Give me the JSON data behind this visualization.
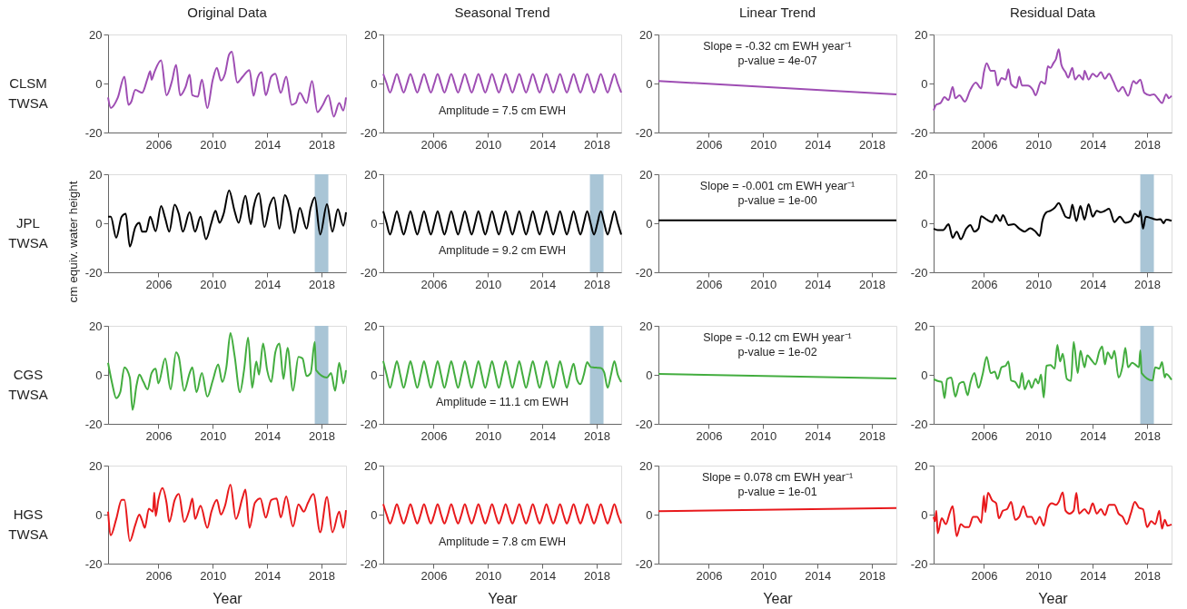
{
  "chart_data": [
    {
      "type": "line",
      "title": "Original Data",
      "annotations": [
        "CLSM TWSA"
      ],
      "xlim": [
        2002.3,
        2019.8
      ],
      "ylim": [
        -20,
        20
      ],
      "xticks": [
        2006,
        2010,
        2014,
        2018
      ],
      "yticks": [
        -20,
        0,
        20
      ],
      "x": [
        2002.3,
        2002.5,
        2003.0,
        2003.5,
        2003.8,
        2004.0,
        2004.3,
        2004.8,
        2005.2,
        2005.4,
        2005.5,
        2005.7,
        2006.2,
        2006.6,
        2007.0,
        2007.3,
        2007.6,
        2008.0,
        2008.3,
        2008.5,
        2008.9,
        2009.2,
        2009.6,
        2010.0,
        2010.3,
        2010.6,
        2010.9,
        2011.2,
        2011.4,
        2011.8,
        2012.2,
        2012.7,
        2013.0,
        2013.3,
        2013.6,
        2013.9,
        2014.3,
        2014.6,
        2015.0,
        2015.4,
        2015.8,
        2016.1,
        2016.4,
        2016.9,
        2017.3,
        2017.7,
        2018.1,
        2018.5,
        2018.9,
        2019.3,
        2019.6,
        2019.8
      ],
      "series": [
        {
          "color": "#9e4db3",
          "values": [
            -5.7,
            -10,
            -6,
            2.8,
            -8.7,
            -7.5,
            -2.6,
            -3.8,
            2,
            5,
            1.5,
            4.5,
            9.4,
            -4.8,
            1,
            7.6,
            -4.8,
            -1.4,
            3.6,
            -4.8,
            -5.4,
            1.6,
            -10,
            1.6,
            6.4,
            1.2,
            4,
            11.8,
            13,
            0.4,
            2.8,
            5.5,
            -5,
            2.4,
            4.6,
            -4.8,
            2.8,
            4,
            -3.8,
            2.8,
            -8.7,
            -8,
            -3.8,
            -8,
            1,
            -11.7,
            -8.7,
            -4.8,
            -13.5,
            -8,
            -11,
            -5.7
          ]
        }
      ]
    },
    {
      "type": "line",
      "title": "Seasonal Trend",
      "annotations": [
        "Amplitude = 7.5 cm EWH"
      ],
      "xlim": [
        2002.3,
        2019.8
      ],
      "ylim": [
        -20,
        20
      ],
      "xticks": [
        2006,
        2010,
        2014,
        2018
      ],
      "yticks": [
        -20,
        0,
        20
      ],
      "x": [
        2002.3,
        2002.55,
        2002.8,
        2003.05,
        2003.3,
        2003.55,
        2003.8,
        2004.05,
        2004.3,
        2004.55,
        2004.8,
        2005.05,
        2005.3,
        2005.55,
        2005.8,
        2006.05,
        2006.3,
        2006.55,
        2006.8,
        2007.05,
        2007.3,
        2007.55,
        2007.8,
        2008.05,
        2008.3,
        2008.55,
        2008.8,
        2009.05,
        2009.3,
        2009.55,
        2009.8,
        2010.05,
        2010.3,
        2010.55,
        2010.8,
        2011.05,
        2011.3,
        2011.55,
        2011.8,
        2012.05,
        2012.3,
        2012.55,
        2012.8,
        2013.05,
        2013.3,
        2013.55,
        2013.8,
        2014.05,
        2014.3,
        2014.55,
        2014.8,
        2015.05,
        2015.3,
        2015.55,
        2015.8,
        2016.05,
        2016.3,
        2016.55,
        2016.8,
        2017.05,
        2017.3,
        2017.55,
        2017.8,
        2018.05,
        2018.3,
        2018.55,
        2018.8,
        2019.05,
        2019.3,
        2019.55,
        2019.8
      ],
      "series": [
        {
          "color": "#9e4db3",
          "values": [
            3.9,
            0,
            -3.7,
            0,
            3.9,
            0,
            -3.7,
            0,
            3.9,
            0,
            -3.7,
            0,
            3.9,
            0,
            -3.7,
            0,
            3.9,
            0,
            -3.7,
            0,
            3.9,
            0,
            -3.7,
            0,
            3.9,
            0,
            -3.7,
            0,
            3.9,
            0,
            -3.7,
            0,
            3.9,
            0,
            -3.7,
            0,
            3.9,
            0,
            -3.7,
            0,
            3.9,
            0,
            -3.7,
            0,
            3.9,
            0,
            -3.7,
            0,
            3.9,
            0,
            -3.7,
            0,
            3.9,
            0,
            -3.7,
            0,
            3.9,
            0,
            -3.7,
            0,
            3.9,
            0,
            -3.7,
            0,
            3.9,
            0,
            -3.7,
            0,
            3.9,
            0,
            -3.7
          ]
        }
      ]
    },
    {
      "type": "line",
      "title": "Linear Trend",
      "annotations": [
        "Slope = -0.32 cm EWH year⁻¹",
        "p-value = 4e-07"
      ],
      "xlim": [
        2002.3,
        2019.8
      ],
      "ylim": [
        -20,
        20
      ],
      "xticks": [
        2006,
        2010,
        2014,
        2018
      ],
      "yticks": [
        -20,
        0,
        20
      ],
      "x": [
        2002.3,
        2019.8
      ],
      "series": [
        {
          "color": "#9e4db3",
          "values": [
            1.0,
            -4.4
          ]
        }
      ]
    },
    {
      "type": "line",
      "title": "Residual Data",
      "xlim": [
        2002.3,
        2019.8
      ],
      "ylim": [
        -20,
        20
      ],
      "xticks": [
        2006,
        2010,
        2014,
        2018
      ],
      "yticks": [
        -20,
        0,
        20
      ],
      "x": [
        2002.3,
        2002.5,
        2002.8,
        2003.1,
        2003.4,
        2003.7,
        2003.9,
        2004.2,
        2004.6,
        2005.0,
        2005.4,
        2005.8,
        2006.0,
        2006.2,
        2006.5,
        2006.8,
        2007.0,
        2007.3,
        2007.6,
        2007.8,
        2008.0,
        2008.4,
        2008.6,
        2008.8,
        2009.2,
        2009.6,
        2009.8,
        2010.2,
        2010.5,
        2010.7,
        2010.9,
        2011.1,
        2011.3,
        2011.5,
        2011.7,
        2012.0,
        2012.2,
        2012.5,
        2012.7,
        2013.0,
        2013.3,
        2013.4,
        2013.7,
        2014.0,
        2014.3,
        2014.6,
        2014.9,
        2015.2,
        2015.5,
        2015.9,
        2016.2,
        2016.6,
        2017.0,
        2017.2,
        2017.5,
        2017.8,
        2018.2,
        2018.5,
        2018.8,
        2019.1,
        2019.4,
        2019.6,
        2019.8
      ],
      "series": [
        {
          "color": "#9e4db3",
          "values": [
            -11,
            -8.6,
            -8,
            -5.6,
            -6.8,
            -1.4,
            -6,
            -4.8,
            -7.4,
            -2.6,
            0.4,
            -2,
            4.6,
            8.2,
            5.2,
            5.2,
            -0.8,
            2.2,
            1.6,
            5.8,
            -0.2,
            -1.7,
            2.8,
            -0.8,
            -0.8,
            -2.6,
            -4.8,
            0.7,
            -0.2,
            7,
            6.4,
            8.2,
            10,
            14,
            7.6,
            4.6,
            2.4,
            6.4,
            1.6,
            3.4,
            1.6,
            5.2,
            1.6,
            4,
            2.8,
            4.6,
            1.9,
            4,
            1,
            -3.2,
            -1.4,
            -5,
            1,
            0,
            1.6,
            -3.8,
            -4.8,
            -4.4,
            -6.2,
            -8,
            -4.4,
            -6,
            -5
          ]
        }
      ]
    },
    {
      "type": "line",
      "ylabel": "cm equiv. water height",
      "annotations": [
        "JPL TWSA"
      ],
      "xlim": [
        2002.3,
        2019.8
      ],
      "ylim": [
        -20,
        20
      ],
      "xticks": [
        2006,
        2010,
        2014,
        2018
      ],
      "yticks": [
        -20,
        0,
        20
      ],
      "bands": [
        {
          "axis": "x",
          "from": 2017.5,
          "to": 2018.5,
          "color": "#a9c5d6"
        }
      ],
      "x": [
        2002.3,
        2002.5,
        2002.9,
        2003.3,
        2003.6,
        2003.9,
        2004.3,
        2004.6,
        2004.8,
        2005.1,
        2005.4,
        2005.8,
        2006.2,
        2006.5,
        2006.8,
        2007.2,
        2007.5,
        2007.8,
        2008.3,
        2008.7,
        2009.1,
        2009.5,
        2009.9,
        2010.2,
        2010.5,
        2010.8,
        2011.2,
        2011.6,
        2011.9,
        2012.4,
        2012.8,
        2013.0,
        2013.4,
        2013.8,
        2014.2,
        2014.5,
        2014.9,
        2015.3,
        2015.7,
        2016.0,
        2016.4,
        2016.9,
        2017.2,
        2017.5,
        2017.9,
        2018.4,
        2018.8,
        2019.2,
        2019.6,
        2019.8
      ],
      "series": [
        {
          "color": "#000000",
          "values": [
            2.7,
            2.7,
            -5.9,
            2.7,
            3.9,
            -9.5,
            -1.6,
            0.2,
            -3.4,
            -3.4,
            2.7,
            -3.2,
            7,
            2.1,
            -3.4,
            7.6,
            3.9,
            -3.4,
            4.5,
            -3.4,
            2.7,
            -6.5,
            0.2,
            5.1,
            0.2,
            3.9,
            13.4,
            5.1,
            0.2,
            11.2,
            -0.4,
            6.3,
            12.2,
            -1.6,
            7.6,
            10.6,
            -2.2,
            11.5,
            5.1,
            -4,
            6.3,
            -2.2,
            6.3,
            10.6,
            -4.6,
            7.8,
            -3.4,
            5.7,
            -1,
            4.5
          ]
        }
      ]
    },
    {
      "type": "line",
      "annotations": [
        "Amplitude = 9.2 cm EWH"
      ],
      "xlim": [
        2002.3,
        2019.8
      ],
      "ylim": [
        -20,
        20
      ],
      "xticks": [
        2006,
        2010,
        2014,
        2018
      ],
      "yticks": [
        -20,
        0,
        20
      ],
      "bands": [
        {
          "axis": "x",
          "from": 2017.5,
          "to": 2018.5,
          "color": "#a9c5d6"
        }
      ],
      "x": [
        2002.3,
        2002.55,
        2002.8,
        2003.05,
        2003.3,
        2003.55,
        2003.8,
        2004.05,
        2004.3,
        2004.55,
        2004.8,
        2005.05,
        2005.3,
        2005.55,
        2005.8,
        2006.05,
        2006.3,
        2006.55,
        2006.8,
        2007.05,
        2007.3,
        2007.55,
        2007.8,
        2008.05,
        2008.3,
        2008.55,
        2008.8,
        2009.05,
        2009.3,
        2009.55,
        2009.8,
        2010.05,
        2010.3,
        2010.55,
        2010.8,
        2011.05,
        2011.3,
        2011.55,
        2011.8,
        2012.05,
        2012.3,
        2012.55,
        2012.8,
        2013.05,
        2013.3,
        2013.55,
        2013.8,
        2014.05,
        2014.3,
        2014.55,
        2014.8,
        2015.05,
        2015.3,
        2015.55,
        2015.8,
        2016.05,
        2016.3,
        2016.55,
        2016.8,
        2017.05,
        2017.3,
        2017.55,
        2017.8,
        2018.05,
        2018.3,
        2018.55,
        2018.8,
        2019.05,
        2019.3,
        2019.55,
        2019.8
      ],
      "series": [
        {
          "color": "#000000",
          "values": [
            4.9,
            0,
            -4.6,
            0,
            4.9,
            0,
            -4.6,
            0,
            4.9,
            0,
            -4.6,
            0,
            4.9,
            0,
            -4.6,
            0,
            4.9,
            0,
            -4.6,
            0,
            4.9,
            0,
            -4.6,
            0,
            4.9,
            0,
            -4.6,
            0,
            4.9,
            0,
            -4.6,
            0,
            4.9,
            0,
            -4.6,
            0,
            4.9,
            0,
            -4.6,
            0,
            4.9,
            0,
            -4.6,
            0,
            4.9,
            0,
            -4.6,
            0,
            4.9,
            0,
            -4.6,
            0,
            4.9,
            0,
            -4.6,
            0,
            4.9,
            0,
            -4.6,
            0,
            4.9,
            0,
            -4.6,
            0,
            4.9,
            0,
            -4.6,
            0,
            4.9,
            0,
            -4.6
          ]
        }
      ]
    },
    {
      "type": "line",
      "annotations": [
        "Slope = -0.001 cm EWH year⁻¹",
        "p-value = 1e-00"
      ],
      "xlim": [
        2002.3,
        2019.8
      ],
      "ylim": [
        -20,
        20
      ],
      "xticks": [
        2006,
        2010,
        2014,
        2018
      ],
      "yticks": [
        -20,
        0,
        20
      ],
      "x": [
        2002.3,
        2019.8
      ],
      "series": [
        {
          "color": "#000000",
          "values": [
            1.2,
            1.2
          ]
        }
      ]
    },
    {
      "type": "line",
      "xlim": [
        2002.3,
        2019.8
      ],
      "ylim": [
        -20,
        20
      ],
      "xticks": [
        2006,
        2010,
        2014,
        2018
      ],
      "yticks": [
        -20,
        0,
        20
      ],
      "bands": [
        {
          "axis": "x",
          "from": 2017.5,
          "to": 2018.5,
          "color": "#a9c5d6"
        }
      ],
      "x": [
        2002.3,
        2002.6,
        2003.0,
        2003.4,
        2003.7,
        2004.0,
        2004.3,
        2004.7,
        2005.0,
        2005.3,
        2005.6,
        2005.8,
        2006.2,
        2006.6,
        2006.9,
        2007.2,
        2007.4,
        2007.8,
        2008.2,
        2008.6,
        2009.0,
        2009.4,
        2009.8,
        2010.1,
        2010.3,
        2010.6,
        2010.9,
        2011.2,
        2011.5,
        2011.8,
        2012.0,
        2012.3,
        2012.5,
        2012.8,
        2013.1,
        2013.4,
        2013.7,
        2014.0,
        2014.3,
        2014.6,
        2014.9,
        2015.2,
        2015.6,
        2016.0,
        2016.4,
        2016.8,
        2017.1,
        2017.4,
        2017.5,
        2017.7,
        2017.9,
        2018.3,
        2018.7,
        2019.0,
        2019.2,
        2019.4,
        2019.8
      ],
      "series": [
        {
          "color": "#000000",
          "values": [
            -2.2,
            -2.8,
            -2.8,
            -0.4,
            -5.9,
            -3.4,
            -6.5,
            -2.2,
            -0.7,
            -3.4,
            -2.2,
            2.9,
            1.5,
            0.5,
            3.3,
            0.9,
            3.3,
            -0.7,
            -0.4,
            -2.2,
            -3.4,
            -2,
            -3.4,
            -5.2,
            0.9,
            4.5,
            5.1,
            6.3,
            8.2,
            5.1,
            2.7,
            2.1,
            7.6,
            0.9,
            7,
            1.5,
            7.8,
            2.7,
            5.1,
            4.5,
            5.1,
            5.9,
            0.5,
            2.7,
            0.2,
            0.9,
            3.9,
            2.7,
            5.1,
            -2.2,
            2.7,
            2.1,
            1.5,
            1.7,
            0,
            1.5,
            1
          ]
        }
      ]
    },
    {
      "type": "line",
      "annotations": [
        "CGS TWSA"
      ],
      "xlim": [
        2002.3,
        2019.8
      ],
      "ylim": [
        -20,
        20
      ],
      "xticks": [
        2006,
        2010,
        2014,
        2018
      ],
      "yticks": [
        -20,
        0,
        20
      ],
      "bands": [
        {
          "axis": "x",
          "from": 2017.5,
          "to": 2018.5,
          "color": "#a9c5d6"
        }
      ],
      "x": [
        2002.3,
        2002.6,
        2002.9,
        2003.2,
        2003.5,
        2003.9,
        2004.1,
        2004.4,
        2004.6,
        2004.9,
        2005.2,
        2005.5,
        2005.8,
        2006.0,
        2006.5,
        2006.9,
        2007.3,
        2007.5,
        2007.9,
        2008.3,
        2008.5,
        2008.8,
        2009.2,
        2009.6,
        2010.0,
        2010.4,
        2010.7,
        2011.0,
        2011.3,
        2011.6,
        2012.0,
        2012.3,
        2012.6,
        2012.9,
        2013.2,
        2013.4,
        2013.7,
        2014.0,
        2014.3,
        2014.6,
        2014.9,
        2015.2,
        2015.5,
        2015.9,
        2016.3,
        2016.6,
        2016.9,
        2017.2,
        2017.5,
        2017.6,
        2018.4,
        2018.7,
        2019.0,
        2019.3,
        2019.6,
        2019.8
      ],
      "series": [
        {
          "color": "#43ad3f",
          "values": [
            4.9,
            -3.5,
            -9.5,
            -7,
            3.1,
            -1.1,
            -14.3,
            -4.1,
            0.1,
            -2.9,
            -5.9,
            0.7,
            2.5,
            -3.5,
            6.7,
            -5.9,
            9.2,
            7.3,
            -6.5,
            0.7,
            3.1,
            -7.1,
            0.7,
            -8.9,
            -2.3,
            4.3,
            -2.9,
            3.1,
            17,
            8,
            -7.1,
            1.9,
            15.2,
            -5.3,
            5.5,
            0.1,
            12.8,
            1.9,
            -2.9,
            9.2,
            12.8,
            -1.7,
            11,
            -6.5,
            7.3,
            6.7,
            -0.5,
            0.7,
            13.4,
            1.9,
            -1.1,
            0.7,
            -6.5,
            4.9,
            -3.5,
            1.9
          ]
        }
      ]
    },
    {
      "type": "line",
      "annotations": [
        "Amplitude = 11.1 cm EWH"
      ],
      "xlim": [
        2002.3,
        2019.8
      ],
      "ylim": [
        -20,
        20
      ],
      "xticks": [
        2006,
        2010,
        2014,
        2018
      ],
      "yticks": [
        -20,
        0,
        20
      ],
      "bands": [
        {
          "axis": "x",
          "from": 2017.5,
          "to": 2018.5,
          "color": "#a9c5d6"
        }
      ],
      "x": [
        2002.3,
        2002.55,
        2002.8,
        2003.05,
        2003.3,
        2003.55,
        2003.8,
        2004.05,
        2004.3,
        2004.55,
        2004.8,
        2005.05,
        2005.3,
        2005.55,
        2005.8,
        2006.05,
        2006.3,
        2006.55,
        2006.8,
        2007.05,
        2007.3,
        2007.55,
        2007.8,
        2008.05,
        2008.3,
        2008.55,
        2008.8,
        2009.05,
        2009.3,
        2009.55,
        2009.8,
        2010.05,
        2010.3,
        2010.55,
        2010.8,
        2011.05,
        2011.3,
        2011.55,
        2011.8,
        2012.05,
        2012.3,
        2012.55,
        2012.8,
        2013.05,
        2013.3,
        2013.55,
        2013.8,
        2014.05,
        2014.3,
        2014.55,
        2014.8,
        2015.05,
        2015.3,
        2015.55,
        2015.8,
        2016.05,
        2016.3,
        2016.55,
        2016.8,
        2017.05,
        2017.3,
        2017.55,
        2017.8,
        2018.05,
        2018.3,
        2018.55,
        2018.8,
        2019.05,
        2019.3,
        2019.55,
        2019.8
      ],
      "series": [
        {
          "color": "#43ad3f",
          "values": [
            5.6,
            0,
            -5.3,
            0,
            5.6,
            0,
            -5.3,
            0,
            5.6,
            0,
            -5.3,
            0,
            5.6,
            0,
            -5.3,
            0,
            5.6,
            0,
            -5.3,
            0,
            5.6,
            0,
            -5.3,
            0,
            5.6,
            0,
            -5.3,
            0,
            5.6,
            0,
            -5.3,
            0,
            5.6,
            0,
            -5.3,
            0,
            5.6,
            0,
            -5.3,
            0,
            5.6,
            0,
            -5.3,
            0,
            5.6,
            0,
            -5.3,
            0,
            5.6,
            0,
            -5.3,
            0,
            5.6,
            0,
            -5.3,
            0,
            4.5,
            -2,
            -3.8,
            0,
            5.2,
            3.2,
            3.0,
            2.9,
            2.8,
            1,
            -5.3,
            0,
            5.6,
            0,
            -3
          ]
        }
      ]
    },
    {
      "type": "line",
      "annotations": [
        "Slope = -0.12 cm EWH year⁻¹",
        "p-value = 1e-02"
      ],
      "xlim": [
        2002.3,
        2019.8
      ],
      "ylim": [
        -20,
        20
      ],
      "xticks": [
        2006,
        2010,
        2014,
        2018
      ],
      "yticks": [
        -20,
        0,
        20
      ],
      "x": [
        2002.3,
        2019.8
      ],
      "series": [
        {
          "color": "#43ad3f",
          "values": [
            0.4,
            -1.5
          ]
        }
      ]
    },
    {
      "type": "line",
      "xlim": [
        2002.3,
        2019.8
      ],
      "ylim": [
        -20,
        20
      ],
      "xticks": [
        2006,
        2010,
        2014,
        2018
      ],
      "yticks": [
        -20,
        0,
        20
      ],
      "bands": [
        {
          "axis": "x",
          "from": 2017.5,
          "to": 2018.5,
          "color": "#a9c5d6"
        }
      ],
      "x": [
        2002.3,
        2002.6,
        2002.9,
        2003.1,
        2003.3,
        2003.6,
        2003.9,
        2004.2,
        2004.5,
        2004.8,
        2005.0,
        2005.3,
        2005.6,
        2005.9,
        2006.2,
        2006.5,
        2006.8,
        2007.0,
        2007.3,
        2007.6,
        2007.8,
        2008.0,
        2008.3,
        2008.6,
        2008.8,
        2009.0,
        2009.3,
        2009.5,
        2009.8,
        2010.0,
        2010.2,
        2010.4,
        2010.6,
        2010.9,
        2011.2,
        2011.4,
        2011.6,
        2011.8,
        2012.1,
        2012.4,
        2012.6,
        2012.9,
        2013.1,
        2013.4,
        2013.6,
        2013.9,
        2014.2,
        2014.5,
        2014.7,
        2014.9,
        2015.1,
        2015.4,
        2015.6,
        2015.9,
        2016.2,
        2016.4,
        2016.6,
        2016.9,
        2017.1,
        2017.4,
        2017.5,
        2017.6,
        2018.4,
        2018.6,
        2018.9,
        2019.1,
        2019.3,
        2019.4,
        2019.8
      ],
      "series": [
        {
          "color": "#43ad3f",
          "values": [
            -1.7,
            -2.5,
            -2.9,
            -9.5,
            -1.7,
            -1.1,
            -8.9,
            -3.5,
            -2.9,
            -8.3,
            -3.5,
            0.7,
            -5.3,
            0.1,
            7.3,
            0.7,
            1.3,
            -1.7,
            3.1,
            3.7,
            5.5,
            -2.3,
            -2.9,
            -5.3,
            0.7,
            -5.9,
            -2.3,
            -5.3,
            -1.7,
            -3.5,
            0.1,
            -9.3,
            3.7,
            4,
            2.5,
            12.2,
            5.5,
            8.6,
            -1.7,
            -2.5,
            13.4,
            0.7,
            9.8,
            3.1,
            8,
            6.1,
            4.3,
            9.8,
            11.6,
            4.3,
            9.2,
            6.7,
            9.8,
            -1.1,
            3.7,
            11,
            3.1,
            4.9,
            4.3,
            3.1,
            10,
            0.7,
            -2.3,
            3.1,
            2.5,
            5.2,
            -1.1,
            0.4,
            -2
          ]
        }
      ]
    },
    {
      "type": "line",
      "xlabel": "Year",
      "annotations": [
        "HGS TWSA"
      ],
      "xlim": [
        2002.3,
        2019.8
      ],
      "ylim": [
        -20,
        20
      ],
      "xticks": [
        2006,
        2010,
        2014,
        2018
      ],
      "yticks": [
        -20,
        0,
        20
      ],
      "x": [
        2002.3,
        2002.5,
        2002.9,
        2003.3,
        2003.5,
        2003.9,
        2004.3,
        2004.6,
        2004.8,
        2005.0,
        2005.3,
        2005.6,
        2005.7,
        2005.8,
        2006.0,
        2006.3,
        2006.6,
        2006.8,
        2007.2,
        2007.5,
        2007.9,
        2008.3,
        2008.5,
        2008.7,
        2009.1,
        2009.6,
        2009.9,
        2010.3,
        2010.6,
        2010.9,
        2011.3,
        2011.7,
        2012.2,
        2012.4,
        2012.7,
        2013.1,
        2013.5,
        2013.9,
        2014.3,
        2014.7,
        2015.0,
        2015.4,
        2015.9,
        2016.3,
        2016.7,
        2017.0,
        2017.4,
        2017.9,
        2018.4,
        2018.8,
        2019.3,
        2019.6,
        2019.8
      ],
      "series": [
        {
          "color": "#e8191c",
          "values": [
            1.2,
            -8.4,
            -1.8,
            6,
            6,
            -10.8,
            -4.2,
            0,
            -2.4,
            -5.4,
            2.4,
            1.2,
            9,
            -0.6,
            6,
            10.8,
            4.8,
            -3,
            6,
            8.4,
            -3,
            2.4,
            6.6,
            -1.8,
            3.6,
            -5.4,
            1.2,
            6,
            0,
            3.6,
            12.2,
            -1.8,
            7.2,
            10.2,
            -5.4,
            4.8,
            6.6,
            -1.2,
            6,
            6.6,
            -1.2,
            7.4,
            -4.8,
            4.2,
            1.2,
            4.8,
            8.4,
            -7.2,
            7.2,
            -7.2,
            1.2,
            -5.4,
            1.8
          ]
        }
      ]
    },
    {
      "type": "line",
      "xlabel": "Year",
      "annotations": [
        "Amplitude = 7.8 cm EWH"
      ],
      "xlim": [
        2002.3,
        2019.8
      ],
      "ylim": [
        -20,
        20
      ],
      "xticks": [
        2006,
        2010,
        2014,
        2018
      ],
      "yticks": [
        -20,
        0,
        20
      ],
      "x": [
        2002.3,
        2002.55,
        2002.8,
        2003.05,
        2003.3,
        2003.55,
        2003.8,
        2004.05,
        2004.3,
        2004.55,
        2004.8,
        2005.05,
        2005.3,
        2005.55,
        2005.8,
        2006.05,
        2006.3,
        2006.55,
        2006.8,
        2007.05,
        2007.3,
        2007.55,
        2007.8,
        2008.05,
        2008.3,
        2008.55,
        2008.8,
        2009.05,
        2009.3,
        2009.55,
        2009.8,
        2010.05,
        2010.3,
        2010.55,
        2010.8,
        2011.05,
        2011.3,
        2011.55,
        2011.8,
        2012.05,
        2012.3,
        2012.55,
        2012.8,
        2013.05,
        2013.3,
        2013.55,
        2013.8,
        2014.05,
        2014.3,
        2014.55,
        2014.8,
        2015.05,
        2015.3,
        2015.55,
        2015.8,
        2016.05,
        2016.3,
        2016.55,
        2016.8,
        2017.05,
        2017.3,
        2017.55,
        2017.8,
        2018.05,
        2018.3,
        2018.55,
        2018.8,
        2019.05,
        2019.3,
        2019.55,
        2019.8
      ],
      "series": [
        {
          "color": "#e8191c",
          "values": [
            4.3,
            0,
            -3.6,
            0,
            4.3,
            0,
            -3.6,
            0,
            4.3,
            0,
            -3.6,
            0,
            4.3,
            0,
            -3.6,
            0,
            4.3,
            0,
            -3.6,
            0,
            4.3,
            0,
            -3.6,
            0,
            4.3,
            0,
            -3.6,
            0,
            4.3,
            0,
            -3.6,
            0,
            4.3,
            0,
            -3.6,
            0,
            4.3,
            0,
            -3.6,
            0,
            4.3,
            0,
            -3.6,
            0,
            4.3,
            0,
            -3.6,
            0,
            4.3,
            0,
            -3.6,
            0,
            4.3,
            0,
            -3.6,
            0,
            4.3,
            0,
            -3.6,
            0,
            4.3,
            0,
            -3.6,
            0,
            4.3,
            0,
            -3.6,
            0,
            4.3,
            0,
            -3.6
          ]
        }
      ]
    },
    {
      "type": "line",
      "xlabel": "Year",
      "annotations": [
        "Slope = 0.078 cm EWH year⁻¹",
        "p-value = 1e-01"
      ],
      "xlim": [
        2002.3,
        2019.8
      ],
      "ylim": [
        -20,
        20
      ],
      "xticks": [
        2006,
        2010,
        2014,
        2018
      ],
      "yticks": [
        -20,
        0,
        20
      ],
      "x": [
        2002.3,
        2019.8
      ],
      "series": [
        {
          "color": "#e8191c",
          "values": [
            1.4,
            2.7
          ]
        }
      ]
    },
    {
      "type": "line",
      "xlabel": "Year",
      "xlim": [
        2002.3,
        2019.8
      ],
      "ylim": [
        -20,
        20
      ],
      "xticks": [
        2006,
        2010,
        2014,
        2018
      ],
      "yticks": [
        -20,
        0,
        20
      ],
      "x": [
        2002.3,
        2002.4,
        2002.5,
        2002.6,
        2002.9,
        2003.2,
        2003.5,
        2003.7,
        2004.0,
        2004.3,
        2004.6,
        2004.9,
        2005.2,
        2005.5,
        2005.8,
        2006.0,
        2006.1,
        2006.3,
        2006.6,
        2006.9,
        2007.1,
        2007.4,
        2007.7,
        2008.0,
        2008.3,
        2008.6,
        2008.9,
        2009.2,
        2009.5,
        2009.8,
        2010.1,
        2010.4,
        2010.7,
        2011.0,
        2011.3,
        2011.5,
        2011.8,
        2012.0,
        2012.3,
        2012.6,
        2012.8,
        2013.0,
        2013.4,
        2013.7,
        2014.0,
        2014.3,
        2014.6,
        2014.9,
        2015.2,
        2015.6,
        2015.9,
        2016.2,
        2016.5,
        2016.8,
        2017.1,
        2017.4,
        2017.7,
        2018.0,
        2018.3,
        2018.6,
        2018.9,
        2019.1,
        2019.3,
        2019.5,
        2019.8
      ],
      "series": [
        {
          "color": "#e8191c",
          "values": [
            -0.9,
            -2.7,
            1.6,
            -7.6,
            -1.5,
            -3.9,
            1,
            3.4,
            -8.8,
            -3.9,
            -5.1,
            -5.1,
            -0.9,
            -0.9,
            -3.3,
            7.7,
            1,
            8.9,
            5.9,
            4.6,
            -1.5,
            1.6,
            2.2,
            5.2,
            -2.1,
            -0.9,
            3.4,
            -0.9,
            -0.9,
            -3.9,
            -0.9,
            -4.5,
            2.8,
            4.6,
            4,
            5.2,
            9.1,
            1.6,
            0.4,
            1.6,
            8.9,
            0.4,
            2.2,
            0.4,
            4.6,
            0.4,
            2.2,
            -0.2,
            4,
            4,
            0.4,
            -0.9,
            -3.9,
            0.4,
            5.2,
            2.8,
            2.2,
            -5.1,
            -2.7,
            -3.9,
            1.6,
            -5.7,
            -2.1,
            -4.5,
            -4
          ]
        }
      ]
    }
  ]
}
